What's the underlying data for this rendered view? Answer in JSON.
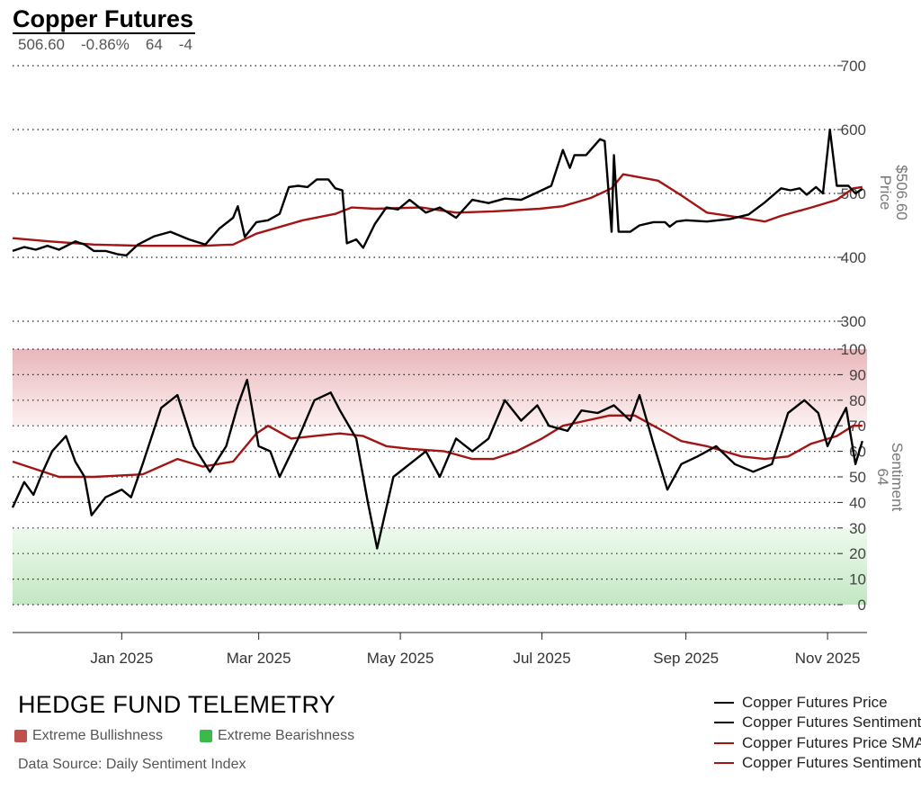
{
  "header": {
    "title": "Copper Futures",
    "stats": [
      "506.60",
      "-0.86%",
      "64",
      "-4"
    ]
  },
  "footer": {
    "brand": "HEDGE FUND TELEMETRY",
    "bull_label": "Extreme Bullishness",
    "bear_label": "Extreme Bearishness",
    "source": "Data Source: Daily Sentiment Index",
    "bull_color": "#c0504d",
    "bear_color": "#3db84a"
  },
  "legend": [
    {
      "label": "Copper Futures Price",
      "color": "#000000"
    },
    {
      "label": "Copper Futures Sentiment",
      "color": "#000000"
    },
    {
      "label": "Copper Futures Price SMA",
      "color": "#a31515"
    },
    {
      "label": "Copper Futures Sentiment SMA",
      "color": "#a31515"
    }
  ],
  "chart_data": {
    "type": "line",
    "x_ticks": [
      "Jan 2025",
      "Mar 2025",
      "May 2025",
      "Jul 2025",
      "Sep 2025",
      "Nov 2025"
    ],
    "x_tick_dates": [
      "2025-01-01",
      "2025-03-01",
      "2025-05-01",
      "2025-07-01",
      "2025-09-01",
      "2025-11-01"
    ],
    "x_range": [
      "2024-11-15",
      "2025-11-18"
    ],
    "price_panel": {
      "axis_title": "Price",
      "axis_value": "$506.60",
      "ylim": [
        300,
        700
      ],
      "ticks": [
        "300",
        "400",
        "500",
        "600",
        "700"
      ],
      "series": [
        {
          "name": "Copper Futures Price",
          "color": "#000000",
          "points": [
            [
              "2024-11-15",
              410
            ],
            [
              "2024-11-20",
              416
            ],
            [
              "2024-11-25",
              412
            ],
            [
              "2024-11-30",
              418
            ],
            [
              "2024-12-05",
              412
            ],
            [
              "2024-12-12",
              425
            ],
            [
              "2024-12-16",
              420
            ],
            [
              "2024-12-20",
              410
            ],
            [
              "2024-12-25",
              410
            ],
            [
              "2024-12-30",
              405
            ],
            [
              "2025-01-03",
              403
            ],
            [
              "2025-01-08",
              420
            ],
            [
              "2025-01-15",
              433
            ],
            [
              "2025-01-22",
              440
            ],
            [
              "2025-01-30",
              428
            ],
            [
              "2025-02-06",
              420
            ],
            [
              "2025-02-12",
              445
            ],
            [
              "2025-02-18",
              462
            ],
            [
              "2025-02-20",
              480
            ],
            [
              "2025-02-23",
              432
            ],
            [
              "2025-02-28",
              455
            ],
            [
              "2025-03-05",
              458
            ],
            [
              "2025-03-10",
              468
            ],
            [
              "2025-03-14",
              510
            ],
            [
              "2025-03-18",
              512
            ],
            [
              "2025-03-22",
              510
            ],
            [
              "2025-03-26",
              522
            ],
            [
              "2025-03-31",
              522
            ],
            [
              "2025-04-03",
              508
            ],
            [
              "2025-04-06",
              505
            ],
            [
              "2025-04-08",
              422
            ],
            [
              "2025-04-12",
              428
            ],
            [
              "2025-04-15",
              415
            ],
            [
              "2025-04-20",
              452
            ],
            [
              "2025-04-25",
              478
            ],
            [
              "2025-04-30",
              475
            ],
            [
              "2025-05-05",
              490
            ],
            [
              "2025-05-12",
              470
            ],
            [
              "2025-05-18",
              478
            ],
            [
              "2025-05-25",
              462
            ],
            [
              "2025-06-01",
              490
            ],
            [
              "2025-06-08",
              485
            ],
            [
              "2025-06-15",
              492
            ],
            [
              "2025-06-22",
              490
            ],
            [
              "2025-06-28",
              500
            ],
            [
              "2025-07-05",
              512
            ],
            [
              "2025-07-10",
              568
            ],
            [
              "2025-07-13",
              540
            ],
            [
              "2025-07-15",
              560
            ],
            [
              "2025-07-20",
              560
            ],
            [
              "2025-07-26",
              585
            ],
            [
              "2025-07-28",
              582
            ],
            [
              "2025-07-31",
              440
            ],
            [
              "2025-08-01",
              560
            ],
            [
              "2025-08-03",
              440
            ],
            [
              "2025-08-08",
              440
            ],
            [
              "2025-08-12",
              450
            ],
            [
              "2025-08-18",
              455
            ],
            [
              "2025-08-23",
              455
            ],
            [
              "2025-08-25",
              448
            ],
            [
              "2025-08-28",
              456
            ],
            [
              "2025-09-01",
              458
            ],
            [
              "2025-09-10",
              456
            ],
            [
              "2025-09-20",
              460
            ],
            [
              "2025-09-28",
              467
            ],
            [
              "2025-10-05",
              486
            ],
            [
              "2025-10-12",
              508
            ],
            [
              "2025-10-16",
              505
            ],
            [
              "2025-10-20",
              508
            ],
            [
              "2025-10-23",
              498
            ],
            [
              "2025-10-27",
              510
            ],
            [
              "2025-10-30",
              500
            ],
            [
              "2025-11-02",
              600
            ],
            [
              "2025-11-05",
              512
            ],
            [
              "2025-11-10",
              512
            ],
            [
              "2025-11-13",
              500
            ],
            [
              "2025-11-16",
              507
            ]
          ]
        },
        {
          "name": "Copper Futures Price SMA",
          "color": "#a31515",
          "points": [
            [
              "2024-11-15",
              430
            ],
            [
              "2024-12-01",
              425
            ],
            [
              "2024-12-20",
              420
            ],
            [
              "2025-01-10",
              418
            ],
            [
              "2025-02-05",
              418
            ],
            [
              "2025-02-18",
              420
            ],
            [
              "2025-02-28",
              437
            ],
            [
              "2025-03-20",
              458
            ],
            [
              "2025-04-03",
              468
            ],
            [
              "2025-04-10",
              478
            ],
            [
              "2025-04-20",
              476
            ],
            [
              "2025-05-10",
              478
            ],
            [
              "2025-05-25",
              470
            ],
            [
              "2025-06-10",
              472
            ],
            [
              "2025-06-30",
              476
            ],
            [
              "2025-07-10",
              480
            ],
            [
              "2025-07-22",
              493
            ],
            [
              "2025-07-31",
              508
            ],
            [
              "2025-08-05",
              530
            ],
            [
              "2025-08-20",
              520
            ],
            [
              "2025-08-30",
              497
            ],
            [
              "2025-09-10",
              470
            ],
            [
              "2025-09-25",
              462
            ],
            [
              "2025-10-05",
              456
            ],
            [
              "2025-10-12",
              465
            ],
            [
              "2025-10-25",
              478
            ],
            [
              "2025-11-05",
              490
            ],
            [
              "2025-11-12",
              508
            ],
            [
              "2025-11-16",
              510
            ]
          ]
        }
      ]
    },
    "sentiment_panel": {
      "axis_title": "Sentiment",
      "axis_value": "64",
      "ylim": [
        0,
        100
      ],
      "ticks": [
        "0",
        "10",
        "20",
        "30",
        "40",
        "50",
        "60",
        "70",
        "80",
        "90",
        "100"
      ],
      "extreme_bullish_band": [
        70,
        100
      ],
      "extreme_bearish_band": [
        0,
        30
      ],
      "series": [
        {
          "name": "Copper Futures Sentiment",
          "color": "#000000",
          "points": [
            [
              "2024-11-15",
              38
            ],
            [
              "2024-11-20",
              48
            ],
            [
              "2024-11-24",
              43
            ],
            [
              "2024-11-28",
              52
            ],
            [
              "2024-12-02",
              60
            ],
            [
              "2024-12-08",
              66
            ],
            [
              "2024-12-12",
              56
            ],
            [
              "2024-12-16",
              50
            ],
            [
              "2024-12-19",
              35
            ],
            [
              "2024-12-25",
              42
            ],
            [
              "2025-01-01",
              45
            ],
            [
              "2025-01-05",
              42
            ],
            [
              "2025-01-10",
              55
            ],
            [
              "2025-01-18",
              77
            ],
            [
              "2025-01-25",
              82
            ],
            [
              "2025-02-01",
              62
            ],
            [
              "2025-02-08",
              52
            ],
            [
              "2025-02-15",
              62
            ],
            [
              "2025-02-20",
              78
            ],
            [
              "2025-02-24",
              88
            ],
            [
              "2025-03-01",
              62
            ],
            [
              "2025-03-06",
              60
            ],
            [
              "2025-03-10",
              50
            ],
            [
              "2025-03-18",
              65
            ],
            [
              "2025-03-25",
              80
            ],
            [
              "2025-04-01",
              83
            ],
            [
              "2025-04-05",
              76
            ],
            [
              "2025-04-12",
              65
            ],
            [
              "2025-04-17",
              40
            ],
            [
              "2025-04-21",
              22
            ],
            [
              "2025-04-28",
              50
            ],
            [
              "2025-05-05",
              55
            ],
            [
              "2025-05-12",
              60
            ],
            [
              "2025-05-18",
              50
            ],
            [
              "2025-05-25",
              65
            ],
            [
              "2025-06-01",
              60
            ],
            [
              "2025-06-08",
              65
            ],
            [
              "2025-06-15",
              80
            ],
            [
              "2025-06-22",
              72
            ],
            [
              "2025-06-29",
              78
            ],
            [
              "2025-07-04",
              70
            ],
            [
              "2025-07-12",
              68
            ],
            [
              "2025-07-18",
              76
            ],
            [
              "2025-07-25",
              75
            ],
            [
              "2025-08-01",
              78
            ],
            [
              "2025-08-08",
              72
            ],
            [
              "2025-08-12",
              82
            ],
            [
              "2025-08-18",
              63
            ],
            [
              "2025-08-24",
              45
            ],
            [
              "2025-08-30",
              55
            ],
            [
              "2025-09-06",
              58
            ],
            [
              "2025-09-14",
              62
            ],
            [
              "2025-09-22",
              55
            ],
            [
              "2025-09-30",
              52
            ],
            [
              "2025-10-08",
              55
            ],
            [
              "2025-10-15",
              75
            ],
            [
              "2025-10-22",
              80
            ],
            [
              "2025-10-28",
              75
            ],
            [
              "2025-11-01",
              62
            ],
            [
              "2025-11-05",
              70
            ],
            [
              "2025-11-09",
              77
            ],
            [
              "2025-11-13",
              55
            ],
            [
              "2025-11-16",
              64
            ]
          ]
        },
        {
          "name": "Copper Futures Sentiment SMA",
          "color": "#a31515",
          "points": [
            [
              "2024-11-15",
              56
            ],
            [
              "2024-11-25",
              53
            ],
            [
              "2024-12-05",
              50
            ],
            [
              "2024-12-20",
              50
            ],
            [
              "2025-01-10",
              51
            ],
            [
              "2025-01-25",
              57
            ],
            [
              "2025-02-05",
              54
            ],
            [
              "2025-02-18",
              56
            ],
            [
              "2025-02-28",
              67
            ],
            [
              "2025-03-05",
              70
            ],
            [
              "2025-03-15",
              65
            ],
            [
              "2025-03-25",
              66
            ],
            [
              "2025-04-05",
              67
            ],
            [
              "2025-04-15",
              66
            ],
            [
              "2025-04-25",
              62
            ],
            [
              "2025-05-05",
              61
            ],
            [
              "2025-05-20",
              60
            ],
            [
              "2025-06-01",
              57
            ],
            [
              "2025-06-10",
              57
            ],
            [
              "2025-06-20",
              60
            ],
            [
              "2025-07-01",
              65
            ],
            [
              "2025-07-10",
              70
            ],
            [
              "2025-07-20",
              72
            ],
            [
              "2025-07-30",
              74
            ],
            [
              "2025-08-10",
              74
            ],
            [
              "2025-08-20",
              69
            ],
            [
              "2025-08-30",
              64
            ],
            [
              "2025-09-10",
              62
            ],
            [
              "2025-09-25",
              58
            ],
            [
              "2025-10-05",
              57
            ],
            [
              "2025-10-15",
              58
            ],
            [
              "2025-10-25",
              63
            ],
            [
              "2025-11-05",
              66
            ],
            [
              "2025-11-12",
              70
            ],
            [
              "2025-11-16",
              70
            ]
          ]
        }
      ]
    }
  }
}
